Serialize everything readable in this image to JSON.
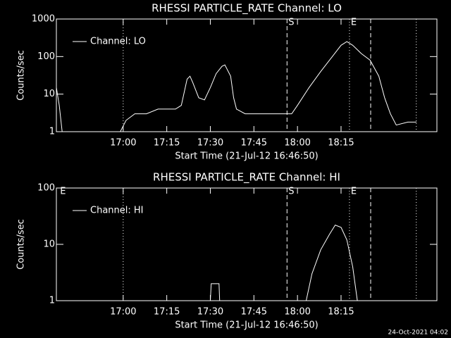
{
  "chart_data": [
    {
      "type": "line",
      "title": "RHESSI PARTICLE_RATE Channel: LO",
      "xlabel": "Start Time (21-Jul-12 16:46:50)",
      "ylabel": "Counts/sec",
      "x": [
        997,
        998,
        999,
        1019,
        1021,
        1024,
        1028,
        1032,
        1038,
        1040,
        1042,
        1043,
        1044,
        1046,
        1048,
        1050,
        1052,
        1054,
        1055,
        1057,
        1058,
        1059,
        1062,
        1070,
        1075,
        1078,
        1080,
        1084,
        1088,
        1092,
        1095,
        1097,
        1099,
        1102,
        1105,
        1108,
        1110,
        1112,
        1114,
        1118,
        1121
      ],
      "series": [
        {
          "name": "Channel: LO",
          "color": "#ffffff",
          "values": [
            15,
            5,
            1,
            1,
            2,
            3,
            3,
            4,
            4,
            5,
            25,
            30,
            20,
            8,
            7,
            15,
            35,
            55,
            60,
            30,
            8,
            4,
            3,
            3,
            3,
            3,
            5,
            15,
            40,
            100,
            200,
            250,
            200,
            120,
            80,
            30,
            8,
            3,
            1.5,
            1.8,
            1.8
          ]
        }
      ],
      "xlim": [
        997,
        1128
      ],
      "ylim": [
        1,
        1000
      ],
      "log": true,
      "legend": "upper-left",
      "xticks": [
        {
          "value": 1020,
          "label": "17:00"
        },
        {
          "value": 1035,
          "label": "17:15"
        },
        {
          "value": 1050,
          "label": "17:30"
        },
        {
          "value": 1065,
          "label": "17:45"
        },
        {
          "value": 1080,
          "label": "18:00"
        },
        {
          "value": 1095,
          "label": "18:15"
        }
      ],
      "yticks": [
        1,
        10,
        100,
        1000
      ],
      "vlines": [
        {
          "x": 1020,
          "style": "dotted"
        },
        {
          "x": 1076.4,
          "style": "dashed"
        },
        {
          "x": 1097.9,
          "style": "dotted"
        },
        {
          "x": 1105.2,
          "style": "dashed"
        },
        {
          "x": 1120.9,
          "style": "dotted"
        }
      ],
      "annotations": [
        {
          "text": "S",
          "x": 1076.4
        },
        {
          "text": "E",
          "x": 1097.9
        }
      ]
    },
    {
      "type": "line",
      "title": "RHESSI PARTICLE_RATE Channel: HI",
      "xlabel": "Start Time (21-Jul-12 16:46:50)",
      "ylabel": "Counts/sec",
      "x": [
        1040,
        1050,
        1050.3,
        1053,
        1053.2,
        1060,
        1083,
        1085,
        1088,
        1091,
        1093,
        1095,
        1097,
        1099,
        1100.6,
        1110
      ],
      "series": [
        {
          "name": "Channel: HI",
          "color": "#ffffff",
          "values": [
            null,
            1,
            2,
            2,
            1,
            null,
            1,
            3,
            8,
            15,
            22,
            20,
            12,
            4,
            1,
            null
          ]
        }
      ],
      "xlim": [
        997,
        1128
      ],
      "ylim": [
        1,
        100
      ],
      "log": true,
      "legend": "upper-left",
      "xticks": [
        {
          "value": 1020,
          "label": "17:00"
        },
        {
          "value": 1035,
          "label": "17:15"
        },
        {
          "value": 1050,
          "label": "17:30"
        },
        {
          "value": 1065,
          "label": "17:45"
        },
        {
          "value": 1080,
          "label": "18:00"
        },
        {
          "value": 1095,
          "label": "18:15"
        }
      ],
      "yticks": [
        1,
        10,
        100
      ],
      "vlines": [
        {
          "x": 1020,
          "style": "dotted"
        },
        {
          "x": 1076.4,
          "style": "dashed"
        },
        {
          "x": 1097.9,
          "style": "dotted"
        },
        {
          "x": 1105.2,
          "style": "dashed"
        },
        {
          "x": 1120.9,
          "style": "dotted"
        }
      ],
      "annotations": [
        {
          "text": "E",
          "x": 997.8
        },
        {
          "text": "S",
          "x": 1076.4
        },
        {
          "text": "E",
          "x": 1097.9
        }
      ]
    }
  ],
  "footer": "24-Oct-2021 04:02"
}
